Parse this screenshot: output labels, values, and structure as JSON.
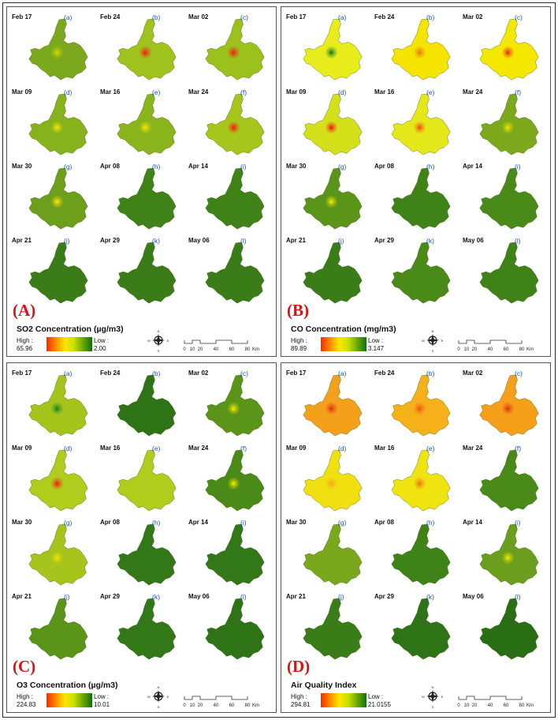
{
  "panels": [
    {
      "id": "A",
      "label": "(A)",
      "title": "SO2 Concentration (µg/m3)",
      "high_label": "High :",
      "high": "65.96",
      "low_label": "Low :",
      "low": "2.00",
      "maps": [
        {
          "date": "Feb 17",
          "letter": "(a)",
          "fill": "#7ba81c",
          "hot": "#c8d400"
        },
        {
          "date": "Feb 24",
          "letter": "(b)",
          "fill": "#9fc21c",
          "hot": "#f03010"
        },
        {
          "date": "Mar 02",
          "letter": "(c)",
          "fill": "#9cc01c",
          "hot": "#f03010"
        },
        {
          "date": "Mar 09",
          "letter": "(d)",
          "fill": "#86b21c",
          "hot": "#e8e000"
        },
        {
          "date": "Mar 16",
          "letter": "(e)",
          "fill": "#8ab41c",
          "hot": "#e8e000"
        },
        {
          "date": "Mar 24",
          "letter": "(f)",
          "fill": "#a6c61c",
          "hot": "#f03010"
        },
        {
          "date": "Mar 30",
          "letter": "(g)",
          "fill": "#6e9f1c",
          "hot": "#f0e000"
        },
        {
          "date": "Apr 08",
          "letter": "(h)",
          "fill": "#3f8218",
          "hot": "#3f8218"
        },
        {
          "date": "Apr 14",
          "letter": "(i)",
          "fill": "#3f8218",
          "hot": "#3f8218"
        },
        {
          "date": "Apr 21",
          "letter": "(j)",
          "fill": "#3a7c18",
          "hot": "#3a7c18"
        },
        {
          "date": "Apr 29",
          "letter": "(k)",
          "fill": "#3a7c18",
          "hot": "#3a7c18"
        },
        {
          "date": "May 06",
          "letter": "(l)",
          "fill": "#3a7c18",
          "hot": "#3a7c18"
        }
      ]
    },
    {
      "id": "B",
      "label": "(B)",
      "title": "CO Concentration (mg/m3)",
      "high_label": "High :",
      "high": "89.89",
      "low_label": "Low :",
      "low": "3.147",
      "maps": [
        {
          "date": "Feb 17",
          "letter": "(a)",
          "fill": "#e8ec1a",
          "hot": "#2a8a20"
        },
        {
          "date": "Feb 24",
          "letter": "(b)",
          "fill": "#f4e400",
          "hot": "#f08010"
        },
        {
          "date": "Mar 02",
          "letter": "(c)",
          "fill": "#f4e800",
          "hot": "#f04010"
        },
        {
          "date": "Mar 09",
          "letter": "(d)",
          "fill": "#d4e01a",
          "hot": "#f03010"
        },
        {
          "date": "Mar 16",
          "letter": "(e)",
          "fill": "#e4e81a",
          "hot": "#f06010"
        },
        {
          "date": "Mar 24",
          "letter": "(f)",
          "fill": "#7ca81c",
          "hot": "#e0e000"
        },
        {
          "date": "Mar 30",
          "letter": "(g)",
          "fill": "#5a9418",
          "hot": "#e0e000"
        },
        {
          "date": "Apr 08",
          "letter": "(h)",
          "fill": "#3f8218",
          "hot": "#3f8218"
        },
        {
          "date": "Apr 14",
          "letter": "(i)",
          "fill": "#4a8a18",
          "hot": "#4a8a18"
        },
        {
          "date": "Apr 21",
          "letter": "(j)",
          "fill": "#3a7c18",
          "hot": "#3a7c18"
        },
        {
          "date": "Apr 29",
          "letter": "(k)",
          "fill": "#4a8a18",
          "hot": "#4a8a18"
        },
        {
          "date": "May 06",
          "letter": "(l)",
          "fill": "#3f8218",
          "hot": "#3f8218"
        }
      ]
    },
    {
      "id": "C",
      "label": "(C)",
      "title": "O3 Concentration (µg/m3)",
      "high_label": "High :",
      "high": "224.83",
      "low_label": "Low :",
      "low": "10.01",
      "maps": [
        {
          "date": "Feb 17",
          "letter": "(a)",
          "fill": "#a4c41c",
          "hot": "#2a8a20"
        },
        {
          "date": "Feb 24",
          "letter": "(b)",
          "fill": "#2e7416",
          "hot": "#2e7416"
        },
        {
          "date": "Mar 02",
          "letter": "(c)",
          "fill": "#5a9418",
          "hot": "#e8e000"
        },
        {
          "date": "Mar 09",
          "letter": "(d)",
          "fill": "#b0cc1c",
          "hot": "#f03010"
        },
        {
          "date": "Mar 16",
          "letter": "(e)",
          "fill": "#b0cc1c",
          "hot": "#b0cc1c"
        },
        {
          "date": "Mar 24",
          "letter": "(f)",
          "fill": "#4a8a18",
          "hot": "#e0e000"
        },
        {
          "date": "Mar 30",
          "letter": "(g)",
          "fill": "#a6c41c",
          "hot": "#e8e000"
        },
        {
          "date": "Apr 08",
          "letter": "(h)",
          "fill": "#327818",
          "hot": "#327818"
        },
        {
          "date": "Apr 14",
          "letter": "(i)",
          "fill": "#327818",
          "hot": "#327818"
        },
        {
          "date": "Apr 21",
          "letter": "(j)",
          "fill": "#5a9418",
          "hot": "#5a9418"
        },
        {
          "date": "Apr 29",
          "letter": "(k)",
          "fill": "#327818",
          "hot": "#327818"
        },
        {
          "date": "May 06",
          "letter": "(l)",
          "fill": "#2e7416",
          "hot": "#2e7416"
        }
      ]
    },
    {
      "id": "D",
      "label": "(D)",
      "title": "Air Quality Index",
      "high_label": "High :",
      "high": "294.81",
      "low_label": "Low :",
      "low": "21.0155",
      "maps": [
        {
          "date": "Feb 17",
          "letter": "(a)",
          "fill": "#f4a01a",
          "hot": "#e04010"
        },
        {
          "date": "Feb 24",
          "letter": "(b)",
          "fill": "#f6b01a",
          "hot": "#f06010"
        },
        {
          "date": "Mar 02",
          "letter": "(c)",
          "fill": "#f6a01a",
          "hot": "#e04010"
        },
        {
          "date": "Mar 09",
          "letter": "(d)",
          "fill": "#f0e010",
          "hot": "#f6b01a"
        },
        {
          "date": "Mar 16",
          "letter": "(e)",
          "fill": "#f0e410",
          "hot": "#f08010"
        },
        {
          "date": "Mar 24",
          "letter": "(f)",
          "fill": "#4a8a18",
          "hot": "#4a8a18"
        },
        {
          "date": "Mar 30",
          "letter": "(g)",
          "fill": "#7aa81c",
          "hot": "#7aa81c"
        },
        {
          "date": "Apr 08",
          "letter": "(h)",
          "fill": "#3f8218",
          "hot": "#3f8218"
        },
        {
          "date": "Apr 14",
          "letter": "(i)",
          "fill": "#6a9e1c",
          "hot": "#e8e000"
        },
        {
          "date": "Apr 21",
          "letter": "(j)",
          "fill": "#3a7c18",
          "hot": "#3a7c18"
        },
        {
          "date": "Apr 29",
          "letter": "(k)",
          "fill": "#2e7416",
          "hot": "#2e7416"
        },
        {
          "date": "May 06",
          "letter": "(l)",
          "fill": "#2a6e14",
          "hot": "#2a6e14"
        }
      ]
    }
  ],
  "compass": {
    "n": "N",
    "s": "S",
    "e": "E",
    "w": "W"
  },
  "scale": {
    "ticks": [
      "0",
      "10",
      "20",
      "40",
      "60",
      "80"
    ],
    "unit": "Km"
  },
  "colors": {
    "panel_label": "#e01010",
    "date_letter": "#1a55a8",
    "ramp": [
      "#ff2a00",
      "#ff8a00",
      "#ffe600",
      "#c8e000",
      "#6aa800",
      "#0f6f12"
    ]
  }
}
